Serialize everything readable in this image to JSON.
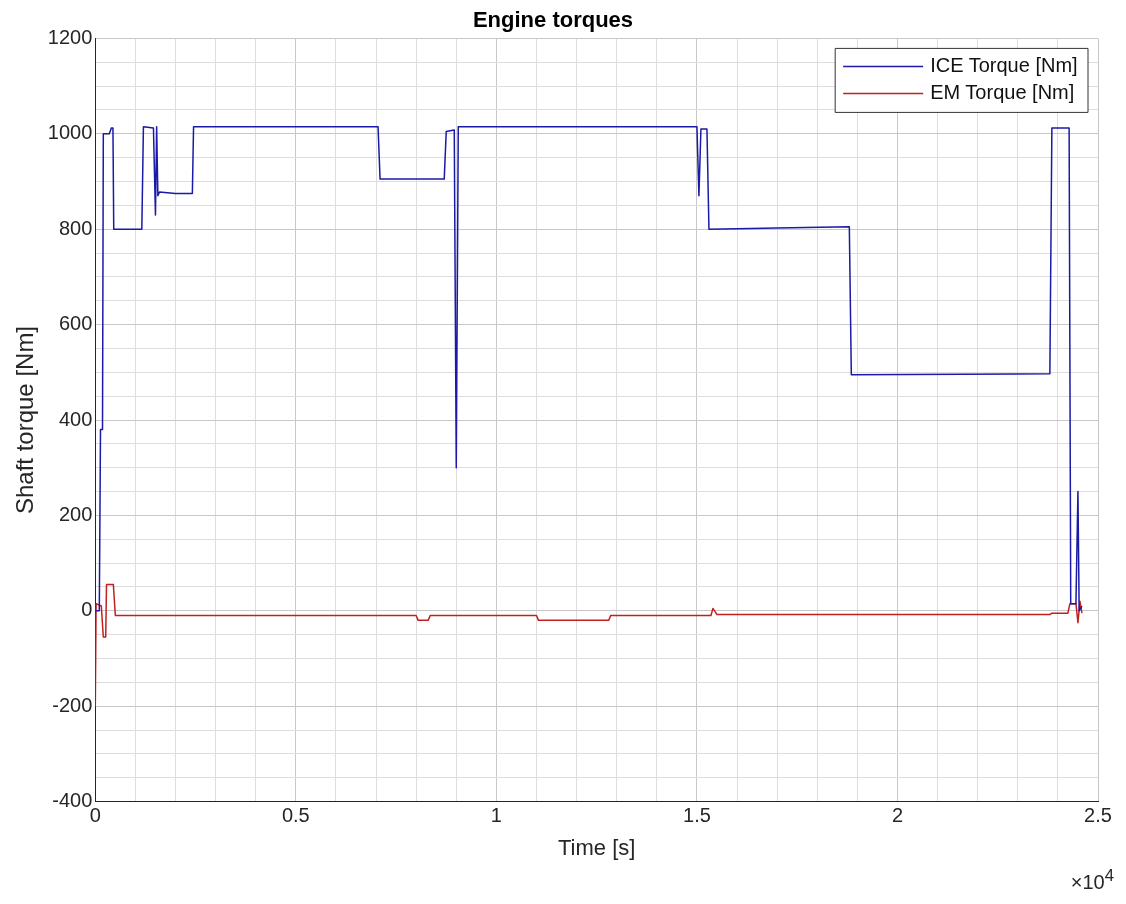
{
  "chart_data": {
    "type": "line",
    "title": "Engine torques",
    "xlabel": "Time [s]",
    "ylabel": "Shaft torque [Nm]",
    "annotations": [
      "×10$^{4}$"
    ],
    "xlim": [
      0,
      2.5
    ],
    "ylim": [
      -400,
      1200
    ],
    "xticks": [
      0,
      {
        "value": 0.1,
        "label": null
      },
      {
        "value": 0.2,
        "label": null
      },
      {
        "value": 0.3,
        "label": null
      },
      {
        "value": 0.4,
        "label": null
      },
      0.5,
      {
        "value": 0.6,
        "label": null
      },
      {
        "value": 0.7,
        "label": null
      },
      {
        "value": 0.8,
        "label": null
      },
      {
        "value": 0.9,
        "label": null
      },
      1,
      {
        "value": 1.1,
        "label": null
      },
      {
        "value": 1.2,
        "label": null
      },
      {
        "value": 1.3,
        "label": null
      },
      {
        "value": 1.4,
        "label": null
      },
      1.5,
      {
        "value": 1.6,
        "label": null
      },
      {
        "value": 1.7,
        "label": null
      },
      {
        "value": 1.8,
        "label": null
      },
      {
        "value": 1.9,
        "label": null
      },
      2,
      {
        "value": 2.1,
        "label": null
      },
      {
        "value": 2.2,
        "label": null
      },
      {
        "value": 2.3,
        "label": null
      },
      {
        "value": 2.4,
        "label": null
      },
      2.5
    ],
    "yticks": [
      -400,
      {
        "value": -350,
        "label": null
      },
      {
        "value": -300,
        "label": null
      },
      {
        "value": -250,
        "label": null
      },
      -200,
      {
        "value": -150,
        "label": null
      },
      {
        "value": -100,
        "label": null
      },
      {
        "value": -50,
        "label": null
      },
      0,
      {
        "value": 50,
        "label": null
      },
      {
        "value": 100,
        "label": null
      },
      {
        "value": 150,
        "label": null
      },
      200,
      {
        "value": 250,
        "label": null
      },
      {
        "value": 300,
        "label": null
      },
      {
        "value": 350,
        "label": null
      },
      400,
      {
        "value": 450,
        "label": null
      },
      {
        "value": 500,
        "label": null
      },
      {
        "value": 550,
        "label": null
      },
      600,
      {
        "value": 650,
        "label": null
      },
      {
        "value": 700,
        "label": null
      },
      {
        "value": 750,
        "label": null
      },
      800,
      {
        "value": 850,
        "label": null
      },
      {
        "value": 900,
        "label": null
      },
      {
        "value": 950,
        "label": null
      },
      1000,
      {
        "value": 1050,
        "label": null
      },
      {
        "value": 1100,
        "label": null
      },
      {
        "value": 1150,
        "label": null
      },
      1200
    ],
    "grid": true,
    "legend": "top right",
    "line_style": "solid",
    "marker": "none",
    "series": [
      {
        "name": "ICE Torque [Nm]",
        "color": "#1a1aa6",
        "x": [
          0,
          0.01,
          0.013,
          0.018,
          0.02,
          0.035,
          0.04,
          0.044,
          0.046,
          0.116,
          0.12,
          0.145,
          0.15,
          0.153,
          0.156,
          0.16,
          0.2,
          0.242,
          0.245,
          0.705,
          0.71,
          0.87,
          0.875,
          0.895,
          0.9,
          0.905,
          1.5,
          1.505,
          1.51,
          1.525,
          1.53,
          1.88,
          1.885,
          2.38,
          2.385,
          2.428,
          2.432,
          2.445,
          2.45,
          2.453,
          2.46
        ],
        "values": [
          0,
          0,
          380,
          380,
          1000,
          1000,
          1012,
          1012,
          800,
          800,
          1015,
          1012,
          830,
          1015,
          870,
          878,
          875,
          875,
          1015,
          1015,
          905,
          905,
          1005,
          1008,
          300,
          1015,
          1015,
          870,
          1010,
          1010,
          800,
          805,
          495,
          497,
          1012,
          1012,
          15,
          15,
          250,
          0,
          10
        ]
      },
      {
        "name": "EM Torque [Nm]",
        "color": "#c02020",
        "x": [
          0,
          0.002,
          0.015,
          0.02,
          0.026,
          0.028,
          0.045,
          0.05,
          0.8,
          0.805,
          0.83,
          0.835,
          1.1,
          1.105,
          1.28,
          1.285,
          1.535,
          1.54,
          1.55,
          2.38,
          2.385,
          2.425,
          2.43,
          2.445,
          2.45,
          2.455,
          2.46
        ],
        "values": [
          -200,
          15,
          10,
          -55,
          -55,
          55,
          55,
          -10,
          -10,
          -20,
          -20,
          -10,
          -10,
          -20,
          -20,
          -10,
          -10,
          5,
          -8,
          -8,
          -5,
          -5,
          15,
          15,
          -25,
          20,
          -5
        ]
      }
    ]
  }
}
